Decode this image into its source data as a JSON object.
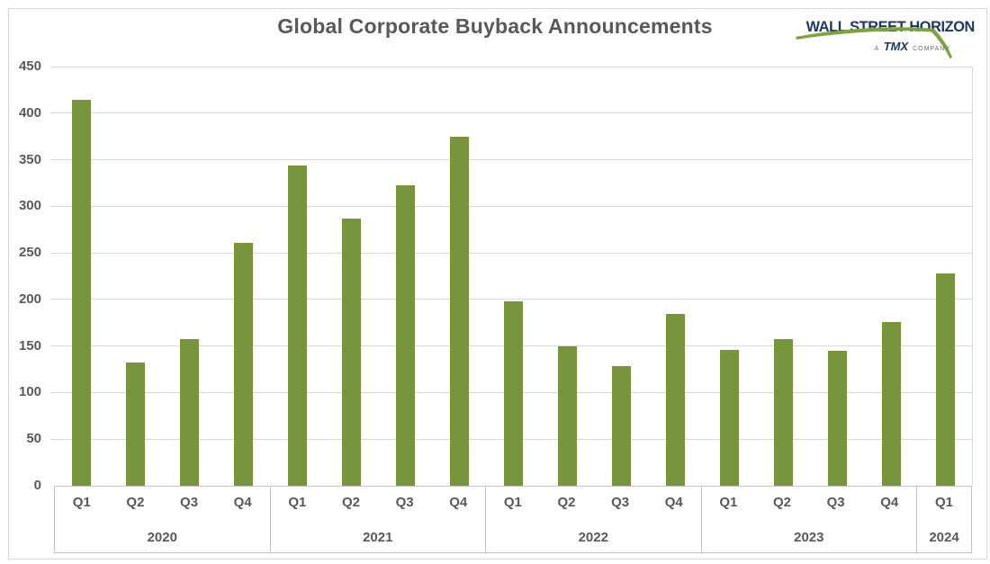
{
  "chart_data": {
    "type": "bar",
    "title": "Global Corporate Buyback Announcements",
    "xlabel": "",
    "ylabel": "",
    "ylim": [
      0,
      450
    ],
    "yticks": [
      0,
      50,
      100,
      150,
      200,
      250,
      300,
      350,
      400,
      450
    ],
    "grid": true,
    "legend": null,
    "bar_color": "#78953D",
    "groups": [
      {
        "year": "2020",
        "categories": [
          "Q1",
          "Q2",
          "Q3",
          "Q4"
        ],
        "values": [
          414,
          132,
          157,
          261
        ]
      },
      {
        "year": "2021",
        "categories": [
          "Q1",
          "Q2",
          "Q3",
          "Q4"
        ],
        "values": [
          344,
          287,
          323,
          375
        ]
      },
      {
        "year": "2022",
        "categories": [
          "Q1",
          "Q2",
          "Q3",
          "Q4"
        ],
        "values": [
          198,
          150,
          128,
          184
        ]
      },
      {
        "year": "2023",
        "categories": [
          "Q1",
          "Q2",
          "Q3",
          "Q4"
        ],
        "values": [
          146,
          157,
          145,
          176
        ]
      },
      {
        "year": "2024",
        "categories": [
          "Q1"
        ],
        "values": [
          228
        ]
      }
    ]
  },
  "logo": {
    "brand": "WALL STREET HORIZON",
    "tagline_prefix": "A",
    "tagline_brand": "TMX",
    "tagline_suffix": "COMPANY"
  },
  "colors": {
    "bar": "#78953D",
    "title_text": "#595959",
    "axis_text": "#595959",
    "gridline": "#DADADA",
    "axis_border": "#C4C4C4",
    "frame_border": "#D9D9D9",
    "logo_navy": "#1B3766",
    "logo_green": "#7FA33C"
  }
}
